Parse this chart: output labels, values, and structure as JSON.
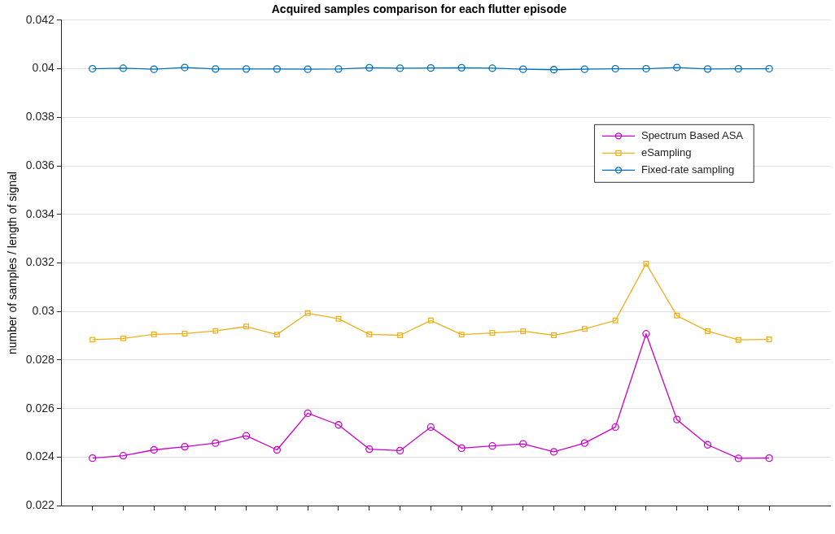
{
  "chart_data": {
    "type": "line",
    "title": "Acquired samples comparison for each flutter episode",
    "ylabel": "number of samples / length of signal",
    "categories": [
      null,
      null,
      null,
      null,
      null,
      null,
      null,
      null,
      null,
      null,
      null,
      null,
      null,
      null,
      null,
      null,
      null,
      null,
      null,
      null,
      null,
      null,
      null
    ],
    "series": [
      {
        "name": "Spectrum Based ASA",
        "color": "#cc00cc",
        "marker": "circle",
        "values": [
          0.02396,
          0.02406,
          0.0243,
          0.02443,
          0.02458,
          0.02488,
          0.0243,
          0.02581,
          0.02533,
          0.02433,
          0.02427,
          0.02524,
          0.02437,
          0.02446,
          0.02455,
          0.02422,
          0.02458,
          0.02524,
          0.02908,
          0.02555,
          0.02451,
          0.02395,
          0.02396
        ]
      },
      {
        "name": "eSampling",
        "color": "#edb120",
        "marker": "square",
        "values": [
          0.02884,
          0.02889,
          0.02906,
          0.02909,
          0.0292,
          0.02938,
          0.02905,
          0.02993,
          0.0297,
          0.02906,
          0.02902,
          0.02963,
          0.02905,
          0.02912,
          0.02919,
          0.02902,
          0.02928,
          0.02963,
          0.03197,
          0.02983,
          0.02919,
          0.02883,
          0.02885
        ]
      },
      {
        "name": "Fixed-rate sampling",
        "color": "#0072bd",
        "marker": "circle",
        "values": [
          0.04,
          0.04002,
          0.03998,
          0.04005,
          0.03999,
          0.03999,
          0.03999,
          0.03998,
          0.03999,
          0.04004,
          0.04002,
          0.04003,
          0.04004,
          0.04002,
          0.03998,
          0.03996,
          0.03998,
          0.04,
          0.04,
          0.04005,
          0.03999,
          0.04,
          0.04
        ]
      }
    ],
    "ylim": [
      0.022,
      0.042
    ],
    "yticks": [
      0.022,
      0.024,
      0.026,
      0.028,
      0.03,
      0.032,
      0.034,
      0.036,
      0.038,
      0.04,
      0.042
    ],
    "grid": "y",
    "legend": "top right",
    "line_style": "solid"
  }
}
